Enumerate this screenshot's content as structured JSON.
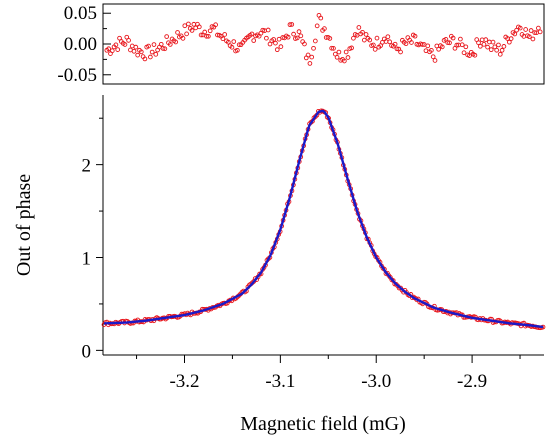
{
  "chart_data": [
    {
      "type": "scatter",
      "panel": "residuals",
      "xlim": [
        -3.285,
        -2.825
      ],
      "ylim": [
        -0.065,
        0.065
      ],
      "yticks": [
        -0.05,
        0.0,
        0.05
      ],
      "ytick_labels": [
        "-0.05",
        "0.00",
        "0.05"
      ],
      "marker_color": "#e8141a",
      "series": [
        {
          "x": [
            -3.28,
            -3.27,
            -3.26,
            -3.25,
            -3.24,
            -3.23,
            -3.22,
            -3.21,
            -3.2,
            -3.19,
            -3.18,
            -3.17,
            -3.16,
            -3.15,
            -3.14,
            -3.13,
            -3.12,
            -3.11,
            -3.1,
            -3.09,
            -3.08,
            -3.07,
            -3.06,
            -3.05,
            -3.04,
            -3.03,
            -3.02,
            -3.01,
            -3.0,
            -2.99,
            -2.98,
            -2.97,
            -2.96,
            -2.95,
            -2.94,
            -2.93,
            -2.92,
            -2.91,
            -2.9,
            -2.89,
            -2.88,
            -2.87,
            -2.86,
            -2.85,
            -2.84,
            -2.83
          ],
          "y": [
            -0.01,
            0.0,
            0.005,
            -0.01,
            -0.015,
            -0.01,
            0.0,
            0.01,
            0.02,
            0.03,
            0.02,
            0.025,
            0.01,
            0.0,
            -0.01,
            0.015,
            0.02,
            0.01,
            -0.005,
            0.025,
            0.015,
            -0.03,
            0.04,
            0.015,
            -0.02,
            -0.015,
            0.025,
            0.005,
            0.0,
            0.015,
            -0.01,
            0.0,
            0.005,
            -0.01,
            -0.02,
            0.0,
            0.005,
            -0.005,
            -0.015,
            0.01,
            -0.005,
            -0.01,
            0.015,
            0.03,
            0.01,
            0.03
          ]
        }
      ]
    },
    {
      "type": "scatter",
      "panel": "main",
      "xlabel": "Magnetic field (mG)",
      "ylabel": "Out of phase",
      "xlim": [
        -3.285,
        -2.825
      ],
      "ylim": [
        -0.05,
        2.75
      ],
      "xticks": [
        -3.2,
        -3.1,
        -3.0,
        -2.9
      ],
      "xtick_labels": [
        "-3.2",
        "-3.1",
        "-3.0",
        "-2.9"
      ],
      "yticks": [
        0,
        1,
        2
      ],
      "ytick_labels": [
        "0",
        "1",
        "2"
      ],
      "data_color": "#e8141a",
      "fit_color": "#1a1ac8",
      "series": [
        {
          "x": [
            -3.285,
            -3.26,
            -3.24,
            -3.22,
            -3.2,
            -3.18,
            -3.16,
            -3.14,
            -3.13,
            -3.12,
            -3.11,
            -3.1,
            -3.09,
            -3.08,
            -3.07,
            -3.06,
            -3.055,
            -3.05,
            -3.04,
            -3.03,
            -3.02,
            -3.01,
            -3.0,
            -2.99,
            -2.98,
            -2.97,
            -2.96,
            -2.94,
            -2.92,
            -2.9,
            -2.88,
            -2.86,
            -2.84,
            -2.825
          ],
          "y": [
            0.29,
            0.3,
            0.32,
            0.35,
            0.38,
            0.43,
            0.5,
            0.61,
            0.71,
            0.84,
            1.03,
            1.3,
            1.65,
            2.05,
            2.42,
            2.57,
            2.58,
            2.51,
            2.22,
            1.85,
            1.5,
            1.22,
            1.0,
            0.84,
            0.72,
            0.63,
            0.56,
            0.46,
            0.4,
            0.35,
            0.32,
            0.29,
            0.27,
            0.25
          ]
        }
      ]
    }
  ]
}
